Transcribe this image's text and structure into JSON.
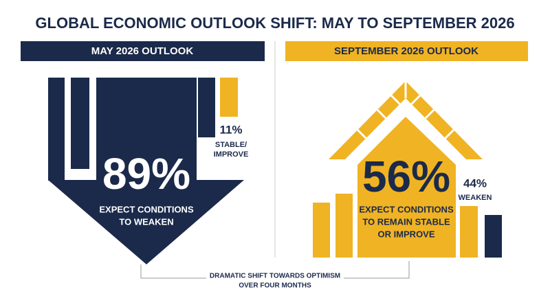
{
  "title": "GLOBAL ECONOMIC OUTLOOK SHIFT: MAY TO SEPTEMBER 2026",
  "left": {
    "header": "MAY 2026 OUTLOOK",
    "stat": "89%",
    "caption": [
      "EXPECT CONDITIONS",
      "TO WEAKEN"
    ],
    "side_stat": "11%",
    "side_label": [
      "STABLE/",
      "IMPROVE"
    ]
  },
  "right": {
    "header": "SEPTEMBER 2026 OUTLOOK",
    "stat": "56%",
    "caption": [
      "EXPECT CONDITIONS",
      "TO REMAIN STABLE",
      "OR IMPROVE"
    ],
    "side_stat": "44%",
    "side_label": [
      "WEAKEN"
    ]
  },
  "footer": [
    "DRAMATIC SHIFT TOWARDS OPTIMISM",
    "OVER FOUR MONTHS"
  ]
}
